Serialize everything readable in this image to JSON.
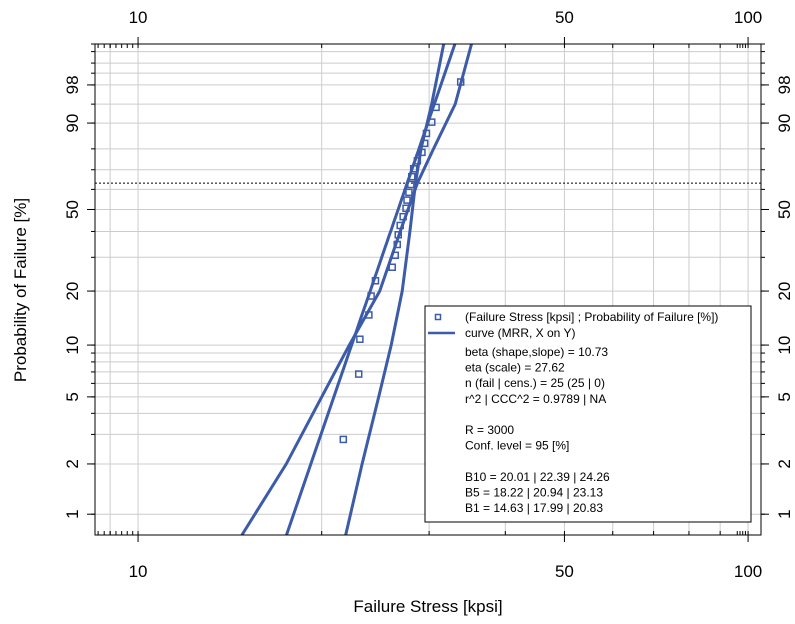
{
  "chart_data": {
    "type": "scatter",
    "xlabel": "Failure Stress [kpsi]",
    "ylabel": "Probability of Failure [%]",
    "x_scale": "log",
    "y_scale": "weibull",
    "xlim": [
      8.5,
      105
    ],
    "ylim": [
      0.75,
      99.9
    ],
    "grid": true,
    "x_ticks": [
      10,
      50,
      100
    ],
    "x_tick_labels": [
      "10",
      "50",
      "100"
    ],
    "y_ticks": [
      1,
      2,
      5,
      10,
      20,
      50,
      90,
      98
    ],
    "y_tick_labels": [
      "1",
      "2",
      "5",
      "10",
      "20",
      "50",
      "90",
      "98"
    ],
    "reference_line_y": 63.2,
    "legend_position": "bottom-right",
    "series": [
      {
        "name": "(Failure Stress [kpsi] ; Probability of Failure [%])",
        "kind": "points",
        "color": "#3c5ba8",
        "x": [
          21.7,
          23.0,
          23.1,
          23.9,
          24.1,
          24.5,
          26.1,
          26.4,
          26.6,
          26.7,
          26.9,
          27.2,
          27.5,
          27.6,
          27.8,
          28.0,
          28.1,
          28.3,
          28.7,
          29.2,
          29.5,
          29.7,
          30.3,
          30.8,
          33.8
        ],
        "y": [
          2.8,
          6.8,
          10.8,
          14.8,
          18.8,
          22.7,
          26.7,
          30.7,
          34.7,
          38.6,
          42.6,
          46.6,
          50.6,
          54.6,
          58.5,
          62.5,
          66.5,
          70.5,
          74.4,
          78.4,
          82.4,
          86.4,
          90.3,
          94.3,
          98.3
        ]
      },
      {
        "name": "curve (MRR, X on Y)",
        "kind": "line",
        "color": "#3c5ba8",
        "beta": 10.73,
        "eta": 27.62
      },
      {
        "kind": "band-lower",
        "color": "#3c5ba8",
        "x": [
          14.8,
          17.5,
          20.0,
          22.2,
          24.9,
          26.9,
          28.7,
          30.5,
          33.1,
          35.2
        ],
        "y": [
          0.75,
          2.0,
          5.0,
          10.0,
          20.0,
          40.0,
          63.2,
          80.0,
          95.0,
          99.9
        ]
      },
      {
        "kind": "band-upper",
        "color": "#3c5ba8",
        "x": [
          21.9,
          23.3,
          24.8,
          26.0,
          27.1,
          27.9,
          28.5,
          29.1,
          30.3,
          31.7
        ],
        "y": [
          0.75,
          2.0,
          5.0,
          10.0,
          20.0,
          40.0,
          63.2,
          80.0,
          95.0,
          99.9
        ]
      }
    ],
    "legend_lines": [
      "beta (shape,slope) = 10.73",
      "eta (scale) = 27.62",
      "n (fail | cens.) = 25 (25 | 0)",
      "r^2 | CCC^2 = 0.9789 | NA",
      "",
      "R = 3000",
      "Conf. level = 95 [%]",
      "",
      "B10 = 20.01 | 22.39 | 24.26",
      "B5 = 18.22 | 20.94 | 23.13",
      "B1 = 14.63 | 17.99 | 20.83"
    ]
  }
}
